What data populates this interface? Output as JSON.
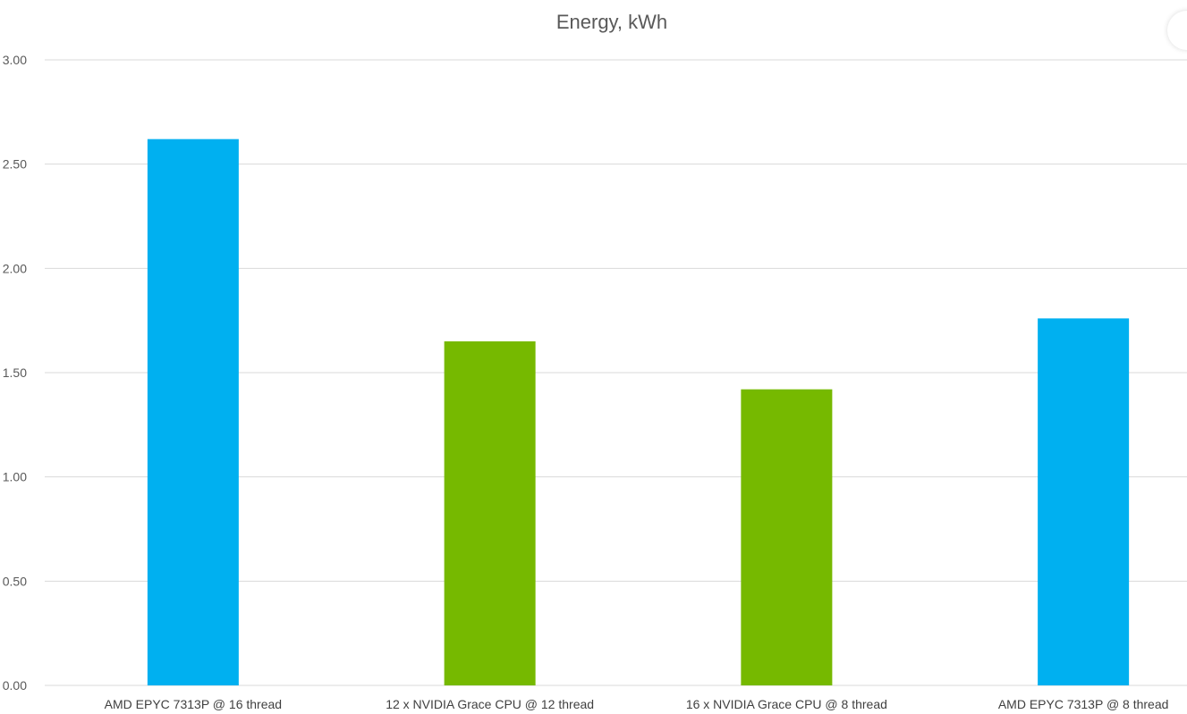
{
  "chart_data": {
    "type": "bar",
    "title": "Energy, kWh",
    "xlabel": "",
    "ylabel": "",
    "ylim": [
      0,
      3
    ],
    "yticks": [
      "0.00",
      "0.50",
      "1.00",
      "1.50",
      "2.00",
      "2.50",
      "3.00"
    ],
    "grid": true,
    "categories": [
      "AMD EPYC 7313P @ 16 thread",
      "12 x NVIDIA Grace CPU @ 12 thread",
      "16 x NVIDIA Grace CPU @ 8 thread",
      "AMD EPYC 7313P @ 8 thread"
    ],
    "values": [
      2.62,
      1.65,
      1.42,
      1.76
    ],
    "colors": [
      "#00b0f0",
      "#76b900",
      "#76b900",
      "#00b0f0"
    ]
  }
}
